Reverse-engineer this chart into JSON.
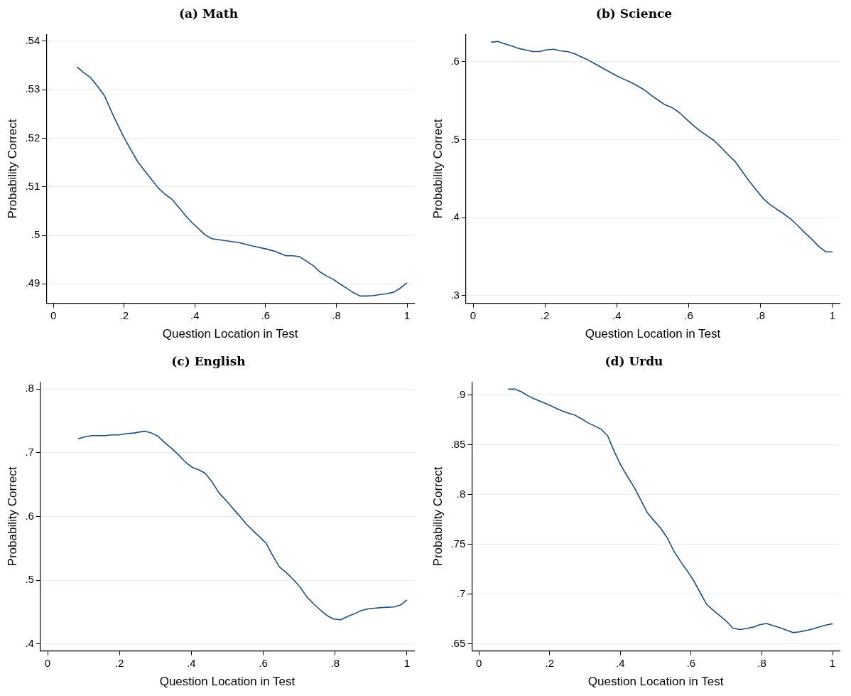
{
  "chart_data": [
    {
      "type": "line",
      "title": "(a) Math",
      "xlabel": "Question Location in Test",
      "ylabel": "Probability Correct",
      "grid": "y",
      "xlim": [
        -0.02,
        1.02
      ],
      "ylim": [
        0.486,
        0.5414
      ],
      "xticks": [
        {
          "value": 0,
          "label": "0"
        },
        {
          "value": 0.2,
          "label": ".2"
        },
        {
          "value": 0.4,
          "label": ".4"
        },
        {
          "value": 0.6,
          "label": ".6"
        },
        {
          "value": 0.8,
          "label": ".8"
        },
        {
          "value": 1,
          "label": "1"
        }
      ],
      "yticks": [
        {
          "value": 0.49,
          "label": ".49"
        },
        {
          "value": 0.5,
          "label": ".5"
        },
        {
          "value": 0.51,
          "label": ".51"
        },
        {
          "value": 0.52,
          "label": ".52"
        },
        {
          "value": 0.53,
          "label": ".53"
        },
        {
          "value": 0.54,
          "label": ".54"
        }
      ],
      "series": [
        {
          "color": "#1f4e79",
          "x": [
            0.067,
            0.086,
            0.105,
            0.125,
            0.144,
            0.171,
            0.2,
            0.238,
            0.259,
            0.296,
            0.315,
            0.334,
            0.353,
            0.373,
            0.392,
            0.429,
            0.448,
            0.486,
            0.525,
            0.563,
            0.601,
            0.622,
            0.658,
            0.677,
            0.696,
            0.734,
            0.753,
            0.773,
            0.792,
            0.81,
            0.829,
            0.848,
            0.867,
            0.886,
            0.905,
            0.925,
            0.944,
            0.963,
            0.982,
            1.0
          ],
          "values": [
            0.5347,
            0.5335,
            0.5325,
            0.5307,
            0.5288,
            0.5244,
            0.5201,
            0.5152,
            0.5132,
            0.5098,
            0.5085,
            0.5075,
            0.5059,
            0.5041,
            0.5026,
            0.5001,
            0.4993,
            0.4989,
            0.4985,
            0.4978,
            0.4972,
            0.4968,
            0.4958,
            0.4958,
            0.4956,
            0.4938,
            0.4925,
            0.4916,
            0.4909,
            0.49,
            0.4891,
            0.4882,
            0.4875,
            0.4875,
            0.4876,
            0.4878,
            0.488,
            0.4883,
            0.4892,
            0.4902
          ]
        }
      ]
    },
    {
      "type": "line",
      "title": "(b) Science",
      "xlabel": "Question Location in Test",
      "ylabel": "Probability Correct",
      "grid": "y",
      "xlim": [
        -0.02,
        1.02
      ],
      "ylim": [
        0.29,
        0.635
      ],
      "xticks": [
        {
          "value": 0,
          "label": "0"
        },
        {
          "value": 0.2,
          "label": ".2"
        },
        {
          "value": 0.4,
          "label": ".4"
        },
        {
          "value": 0.6,
          "label": ".6"
        },
        {
          "value": 0.8,
          "label": ".8"
        },
        {
          "value": 1,
          "label": "1"
        }
      ],
      "yticks": [
        {
          "value": 0.3,
          "label": ".3"
        },
        {
          "value": 0.4,
          "label": ".4"
        },
        {
          "value": 0.5,
          "label": ".5"
        },
        {
          "value": 0.6,
          "label": ".6"
        }
      ],
      "series": [
        {
          "color": "#1f4e79",
          "x": [
            0.05,
            0.069,
            0.087,
            0.108,
            0.127,
            0.146,
            0.165,
            0.184,
            0.203,
            0.224,
            0.243,
            0.263,
            0.283,
            0.302,
            0.321,
            0.34,
            0.359,
            0.379,
            0.399,
            0.417,
            0.437,
            0.457,
            0.476,
            0.495,
            0.514,
            0.533,
            0.554,
            0.573,
            0.592,
            0.611,
            0.632,
            0.651,
            0.67,
            0.69,
            0.709,
            0.729,
            0.749,
            0.768,
            0.787,
            0.806,
            0.825,
            0.844,
            0.864,
            0.884,
            0.903,
            0.922,
            0.943,
            0.962,
            0.981,
            1.0
          ],
          "values": [
            0.625,
            0.626,
            0.623,
            0.62,
            0.617,
            0.615,
            0.613,
            0.613,
            0.615,
            0.616,
            0.614,
            0.613,
            0.61,
            0.606,
            0.602,
            0.597,
            0.592,
            0.587,
            0.582,
            0.578,
            0.574,
            0.569,
            0.564,
            0.557,
            0.551,
            0.545,
            0.541,
            0.535,
            0.527,
            0.519,
            0.511,
            0.505,
            0.499,
            0.49,
            0.481,
            0.472,
            0.459,
            0.447,
            0.436,
            0.425,
            0.417,
            0.411,
            0.405,
            0.398,
            0.39,
            0.381,
            0.372,
            0.363,
            0.356,
            0.356
          ]
        }
      ]
    },
    {
      "type": "line",
      "title": "(c) English",
      "xlabel": "Question Location in Test",
      "ylabel": "Probability Correct",
      "grid": "y",
      "xlim": [
        -0.02,
        1.02
      ],
      "ylim": [
        0.389,
        0.811
      ],
      "xticks": [
        {
          "value": 0,
          "label": "0"
        },
        {
          "value": 0.2,
          "label": ".2"
        },
        {
          "value": 0.4,
          "label": ".4"
        },
        {
          "value": 0.6,
          "label": ".6"
        },
        {
          "value": 0.8,
          "label": ".8"
        },
        {
          "value": 1,
          "label": "1"
        }
      ],
      "yticks": [
        {
          "value": 0.4,
          "label": ".4"
        },
        {
          "value": 0.5,
          "label": ".5"
        },
        {
          "value": 0.6,
          "label": ".6"
        },
        {
          "value": 0.7,
          "label": ".7"
        },
        {
          "value": 0.8,
          "label": ".8"
        }
      ],
      "series": [
        {
          "color": "#1f4e79",
          "x": [
            0.085,
            0.103,
            0.122,
            0.16,
            0.178,
            0.199,
            0.219,
            0.24,
            0.27,
            0.289,
            0.307,
            0.326,
            0.345,
            0.364,
            0.384,
            0.403,
            0.421,
            0.438,
            0.458,
            0.477,
            0.497,
            0.515,
            0.534,
            0.553,
            0.573,
            0.59,
            0.608,
            0.626,
            0.645,
            0.664,
            0.684,
            0.703,
            0.721,
            0.74,
            0.759,
            0.779,
            0.796,
            0.816,
            0.834,
            0.853,
            0.871,
            0.89,
            0.91,
            0.929,
            0.964,
            0.982,
            1.0
          ],
          "values": [
            0.722,
            0.725,
            0.727,
            0.727,
            0.728,
            0.728,
            0.73,
            0.731,
            0.734,
            0.731,
            0.726,
            0.716,
            0.707,
            0.697,
            0.685,
            0.677,
            0.673,
            0.668,
            0.654,
            0.637,
            0.625,
            0.613,
            0.601,
            0.588,
            0.577,
            0.568,
            0.558,
            0.539,
            0.521,
            0.512,
            0.501,
            0.489,
            0.474,
            0.463,
            0.453,
            0.444,
            0.439,
            0.438,
            0.443,
            0.447,
            0.452,
            0.455,
            0.456,
            0.457,
            0.458,
            0.461,
            0.469
          ]
        }
      ]
    },
    {
      "type": "line",
      "title": "(d) Urdu",
      "xlabel": "Question Location in Test",
      "ylabel": "Probability Correct",
      "grid": "y",
      "xlim": [
        -0.02,
        1.02
      ],
      "ylim": [
        0.6429,
        0.9131
      ],
      "xticks": [
        {
          "value": 0,
          "label": "0"
        },
        {
          "value": 0.2,
          "label": ".2"
        },
        {
          "value": 0.4,
          "label": ".4"
        },
        {
          "value": 0.6,
          "label": ".6"
        },
        {
          "value": 0.8,
          "label": ".8"
        },
        {
          "value": 1,
          "label": "1"
        }
      ],
      "yticks": [
        {
          "value": 0.65,
          "label": ".65"
        },
        {
          "value": 0.7,
          "label": ".7"
        },
        {
          "value": 0.75,
          "label": ".75"
        },
        {
          "value": 0.8,
          "label": ".8"
        },
        {
          "value": 0.85,
          "label": ".85"
        },
        {
          "value": 0.9,
          "label": ".9"
        }
      ],
      "series": [
        {
          "color": "#1f4e79",
          "x": [
            0.083,
            0.101,
            0.12,
            0.139,
            0.158,
            0.177,
            0.197,
            0.216,
            0.234,
            0.252,
            0.27,
            0.289,
            0.308,
            0.327,
            0.345,
            0.364,
            0.383,
            0.401,
            0.42,
            0.439,
            0.458,
            0.476,
            0.495,
            0.514,
            0.533,
            0.551,
            0.57,
            0.589,
            0.607,
            0.626,
            0.644,
            0.663,
            0.682,
            0.701,
            0.719,
            0.738,
            0.757,
            0.775,
            0.794,
            0.813,
            0.832,
            0.85,
            0.869,
            0.888,
            0.907,
            0.925,
            0.944,
            0.963,
            0.981,
            1.0
          ],
          "values": [
            0.906,
            0.906,
            0.9034,
            0.8992,
            0.8961,
            0.8932,
            0.8903,
            0.8871,
            0.8843,
            0.8819,
            0.8801,
            0.8764,
            0.8722,
            0.869,
            0.8659,
            0.8591,
            0.8431,
            0.8297,
            0.8182,
            0.8074,
            0.7943,
            0.782,
            0.7738,
            0.7662,
            0.7562,
            0.7434,
            0.7329,
            0.7234,
            0.7137,
            0.7012,
            0.6896,
            0.6836,
            0.6781,
            0.6723,
            0.6657,
            0.6644,
            0.6655,
            0.6668,
            0.6692,
            0.6705,
            0.6684,
            0.6663,
            0.6639,
            0.6613,
            0.6621,
            0.6634,
            0.665,
            0.6671,
            0.6689,
            0.6702
          ]
        }
      ]
    }
  ]
}
